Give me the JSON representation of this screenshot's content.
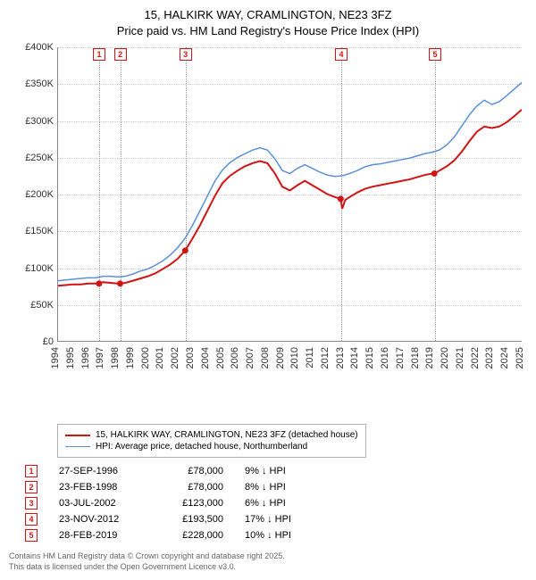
{
  "title_line1": "15, HALKIRK WAY, CRAMLINGTON, NE23 3FZ",
  "title_line2": "Price paid vs. HM Land Registry's House Price Index (HPI)",
  "chart": {
    "type": "line",
    "background_color": "#ffffff",
    "grid_color": "#cccccc",
    "ylim": [
      0,
      400000
    ],
    "ytick_step": 50000,
    "ytick_labels": [
      "£0",
      "£50K",
      "£100K",
      "£150K",
      "£200K",
      "£250K",
      "£300K",
      "£350K",
      "£400K"
    ],
    "xlim": [
      1994,
      2025
    ],
    "xtick_step": 1,
    "xtick_labels": [
      "1994",
      "1995",
      "1996",
      "1997",
      "1998",
      "1999",
      "2000",
      "2001",
      "2002",
      "2003",
      "2004",
      "2005",
      "2006",
      "2007",
      "2008",
      "2009",
      "2010",
      "2011",
      "2012",
      "2013",
      "2014",
      "2015",
      "2016",
      "2017",
      "2018",
      "2019",
      "2020",
      "2021",
      "2022",
      "2023",
      "2024",
      "2025"
    ],
    "label_fontsize": 11,
    "series": [
      {
        "name": "price_paid",
        "label": "15, HALKIRK WAY, CRAMLINGTON, NE23 3FZ (detached house)",
        "color": "#d01414",
        "line_width": 2,
        "points": [
          [
            1994.0,
            75000
          ],
          [
            1994.5,
            76000
          ],
          [
            1995.0,
            77000
          ],
          [
            1995.5,
            77000
          ],
          [
            1996.0,
            78000
          ],
          [
            1996.5,
            78000
          ],
          [
            1996.74,
            78000
          ],
          [
            1997.0,
            80000
          ],
          [
            1997.5,
            79000
          ],
          [
            1998.0,
            78000
          ],
          [
            1998.15,
            78000
          ],
          [
            1998.5,
            79000
          ],
          [
            1999.0,
            82000
          ],
          [
            1999.5,
            85000
          ],
          [
            2000.0,
            88000
          ],
          [
            2000.5,
            92000
          ],
          [
            2001.0,
            98000
          ],
          [
            2001.5,
            104000
          ],
          [
            2002.0,
            112000
          ],
          [
            2002.5,
            123000
          ],
          [
            2003.0,
            140000
          ],
          [
            2003.5,
            158000
          ],
          [
            2004.0,
            178000
          ],
          [
            2004.5,
            198000
          ],
          [
            2005.0,
            215000
          ],
          [
            2005.5,
            225000
          ],
          [
            2006.0,
            232000
          ],
          [
            2006.5,
            238000
          ],
          [
            2007.0,
            242000
          ],
          [
            2007.5,
            245000
          ],
          [
            2008.0,
            242000
          ],
          [
            2008.5,
            228000
          ],
          [
            2009.0,
            210000
          ],
          [
            2009.5,
            205000
          ],
          [
            2010.0,
            212000
          ],
          [
            2010.5,
            218000
          ],
          [
            2011.0,
            212000
          ],
          [
            2011.5,
            206000
          ],
          [
            2012.0,
            200000
          ],
          [
            2012.5,
            196000
          ],
          [
            2012.9,
            193500
          ],
          [
            2013.0,
            180000
          ],
          [
            2013.2,
            192000
          ],
          [
            2013.5,
            196000
          ],
          [
            2014.0,
            202000
          ],
          [
            2014.5,
            207000
          ],
          [
            2015.0,
            210000
          ],
          [
            2015.5,
            212000
          ],
          [
            2016.0,
            214000
          ],
          [
            2016.5,
            216000
          ],
          [
            2017.0,
            218000
          ],
          [
            2017.5,
            220000
          ],
          [
            2018.0,
            223000
          ],
          [
            2018.5,
            226000
          ],
          [
            2019.0,
            228000
          ],
          [
            2019.16,
            228000
          ],
          [
            2019.5,
            232000
          ],
          [
            2020.0,
            238000
          ],
          [
            2020.5,
            246000
          ],
          [
            2021.0,
            258000
          ],
          [
            2021.5,
            272000
          ],
          [
            2022.0,
            285000
          ],
          [
            2022.5,
            292000
          ],
          [
            2023.0,
            290000
          ],
          [
            2023.5,
            292000
          ],
          [
            2024.0,
            298000
          ],
          [
            2024.5,
            306000
          ],
          [
            2025.0,
            315000
          ]
        ]
      },
      {
        "name": "hpi",
        "label": "HPI: Average price, detached house, Northumberland",
        "color": "#5b8fd6",
        "line_width": 1.5,
        "points": [
          [
            1994.0,
            82000
          ],
          [
            1994.5,
            83000
          ],
          [
            1995.0,
            84000
          ],
          [
            1995.5,
            85000
          ],
          [
            1996.0,
            86000
          ],
          [
            1996.5,
            86000
          ],
          [
            1997.0,
            88000
          ],
          [
            1997.5,
            88000
          ],
          [
            1998.0,
            87000
          ],
          [
            1998.5,
            88000
          ],
          [
            1999.0,
            91000
          ],
          [
            1999.5,
            95000
          ],
          [
            2000.0,
            98000
          ],
          [
            2000.5,
            103000
          ],
          [
            2001.0,
            109000
          ],
          [
            2001.5,
            117000
          ],
          [
            2002.0,
            127000
          ],
          [
            2002.5,
            140000
          ],
          [
            2003.0,
            158000
          ],
          [
            2003.5,
            178000
          ],
          [
            2004.0,
            198000
          ],
          [
            2004.5,
            218000
          ],
          [
            2005.0,
            233000
          ],
          [
            2005.5,
            243000
          ],
          [
            2006.0,
            250000
          ],
          [
            2006.5,
            255000
          ],
          [
            2007.0,
            260000
          ],
          [
            2007.5,
            263000
          ],
          [
            2008.0,
            260000
          ],
          [
            2008.5,
            248000
          ],
          [
            2009.0,
            232000
          ],
          [
            2009.5,
            228000
          ],
          [
            2010.0,
            235000
          ],
          [
            2010.5,
            240000
          ],
          [
            2011.0,
            235000
          ],
          [
            2011.5,
            230000
          ],
          [
            2012.0,
            226000
          ],
          [
            2012.5,
            224000
          ],
          [
            2013.0,
            225000
          ],
          [
            2013.5,
            228000
          ],
          [
            2014.0,
            232000
          ],
          [
            2014.5,
            237000
          ],
          [
            2015.0,
            240000
          ],
          [
            2015.5,
            241000
          ],
          [
            2016.0,
            243000
          ],
          [
            2016.5,
            245000
          ],
          [
            2017.0,
            247000
          ],
          [
            2017.5,
            249000
          ],
          [
            2018.0,
            252000
          ],
          [
            2018.5,
            255000
          ],
          [
            2019.0,
            257000
          ],
          [
            2019.5,
            260000
          ],
          [
            2020.0,
            267000
          ],
          [
            2020.5,
            278000
          ],
          [
            2021.0,
            293000
          ],
          [
            2021.5,
            308000
          ],
          [
            2022.0,
            320000
          ],
          [
            2022.5,
            328000
          ],
          [
            2023.0,
            322000
          ],
          [
            2023.5,
            326000
          ],
          [
            2024.0,
            334000
          ],
          [
            2024.5,
            343000
          ],
          [
            2025.0,
            352000
          ]
        ]
      }
    ],
    "price_markers": [
      {
        "n": "1",
        "x": 1996.74,
        "y": 78000
      },
      {
        "n": "2",
        "x": 1998.15,
        "y": 78000
      },
      {
        "n": "3",
        "x": 2002.5,
        "y": 123000
      },
      {
        "n": "4",
        "x": 2012.9,
        "y": 193500
      },
      {
        "n": "5",
        "x": 2019.16,
        "y": 228000
      }
    ],
    "marker_box_color": "#d01414",
    "marker_vline_color": "#999999"
  },
  "legend": {
    "border_color": "#b0b0b0",
    "items": [
      {
        "color": "#d01414",
        "width": 2,
        "label": "15, HALKIRK WAY, CRAMLINGTON, NE23 3FZ (detached house)"
      },
      {
        "color": "#5b8fd6",
        "width": 1.5,
        "label": "HPI: Average price, detached house, Northumberland"
      }
    ]
  },
  "sales_table": {
    "arrow": "↓",
    "suffix": "HPI",
    "rows": [
      {
        "n": "1",
        "date": "27-SEP-1996",
        "price": "£78,000",
        "diff": "9%"
      },
      {
        "n": "2",
        "date": "23-FEB-1998",
        "price": "£78,000",
        "diff": "8%"
      },
      {
        "n": "3",
        "date": "03-JUL-2002",
        "price": "£123,000",
        "diff": "6%"
      },
      {
        "n": "4",
        "date": "23-NOV-2012",
        "price": "£193,500",
        "diff": "17%"
      },
      {
        "n": "5",
        "date": "28-FEB-2019",
        "price": "£228,000",
        "diff": "10%"
      }
    ]
  },
  "footnote_line1": "Contains HM Land Registry data © Crown copyright and database right 2025.",
  "footnote_line2": "This data is licensed under the Open Government Licence v3.0."
}
